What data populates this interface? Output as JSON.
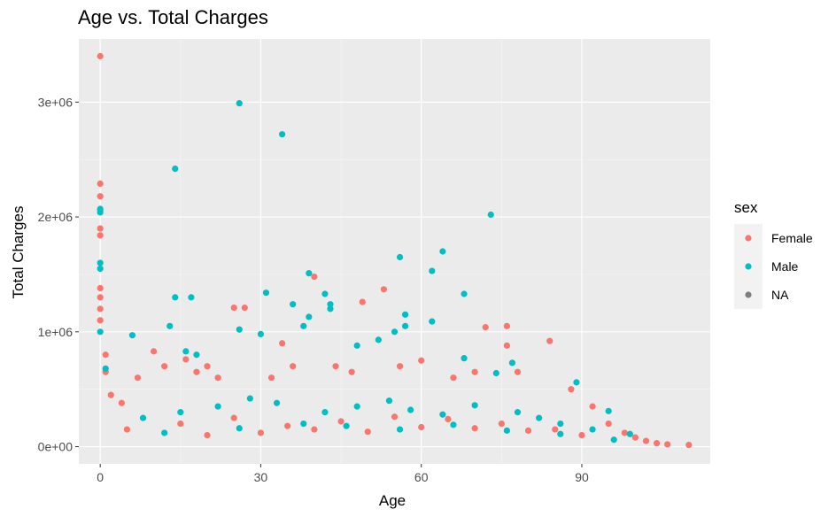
{
  "chart_data": {
    "type": "scatter",
    "title": "Age vs. Total Charges",
    "xlabel": "Age",
    "ylabel": "Total Charges",
    "xlim": [
      -4,
      114
    ],
    "ylim": [
      -150000,
      3550000
    ],
    "x_ticks": [
      0,
      30,
      60,
      90
    ],
    "x_tick_labels": [
      "0",
      "30",
      "60",
      "90"
    ],
    "y_ticks": [
      0,
      1000000,
      2000000,
      3000000
    ],
    "y_tick_labels": [
      "0e+00",
      "1e+06",
      "2e+06",
      "3e+06"
    ],
    "grid": true,
    "legend": {
      "title": "sex",
      "position": "right",
      "entries": [
        {
          "name": "Female",
          "color": "#F8766D"
        },
        {
          "name": "Male",
          "color": "#00BFC4"
        },
        {
          "name": "NA",
          "color": "#7F7F7F"
        }
      ]
    },
    "series": [
      {
        "name": "Female",
        "color": "#F8766D",
        "points": [
          [
            0,
            3400000
          ],
          [
            0,
            2290000
          ],
          [
            0,
            2180000
          ],
          [
            0,
            2060000
          ],
          [
            0,
            1900000
          ],
          [
            0,
            1840000
          ],
          [
            0,
            1380000
          ],
          [
            0,
            1300000
          ],
          [
            0,
            1200000
          ],
          [
            0,
            1100000
          ],
          [
            1,
            800000
          ],
          [
            1,
            650000
          ],
          [
            2,
            450000
          ],
          [
            4,
            380000
          ],
          [
            7,
            600000
          ],
          [
            10,
            830000
          ],
          [
            12,
            700000
          ],
          [
            16,
            760000
          ],
          [
            18,
            650000
          ],
          [
            20,
            700000
          ],
          [
            22,
            600000
          ],
          [
            25,
            1210000
          ],
          [
            27,
            1210000
          ],
          [
            32,
            600000
          ],
          [
            34,
            900000
          ],
          [
            36,
            700000
          ],
          [
            40,
            1480000
          ],
          [
            44,
            700000
          ],
          [
            47,
            650000
          ],
          [
            49,
            1260000
          ],
          [
            53,
            1370000
          ],
          [
            56,
            700000
          ],
          [
            60,
            750000
          ],
          [
            66,
            600000
          ],
          [
            70,
            650000
          ],
          [
            72,
            1040000
          ],
          [
            76,
            1050000
          ],
          [
            76,
            880000
          ],
          [
            78,
            650000
          ],
          [
            84,
            920000
          ],
          [
            88,
            500000
          ],
          [
            92,
            350000
          ],
          [
            95,
            200000
          ],
          [
            98,
            120000
          ],
          [
            100,
            80000
          ],
          [
            102,
            50000
          ],
          [
            104,
            30000
          ],
          [
            106,
            20000
          ],
          [
            110,
            15000
          ],
          [
            5,
            150000
          ],
          [
            15,
            200000
          ],
          [
            25,
            250000
          ],
          [
            35,
            180000
          ],
          [
            45,
            220000
          ],
          [
            55,
            260000
          ],
          [
            65,
            240000
          ],
          [
            75,
            200000
          ],
          [
            85,
            150000
          ],
          [
            20,
            100000
          ],
          [
            30,
            120000
          ],
          [
            40,
            150000
          ],
          [
            50,
            130000
          ],
          [
            60,
            170000
          ],
          [
            70,
            160000
          ],
          [
            80,
            140000
          ],
          [
            90,
            100000
          ]
        ]
      },
      {
        "name": "Male",
        "color": "#00BFC4",
        "points": [
          [
            26,
            2990000
          ],
          [
            34,
            2720000
          ],
          [
            14,
            2420000
          ],
          [
            73,
            2020000
          ],
          [
            0,
            2070000
          ],
          [
            0,
            2040000
          ],
          [
            0,
            1600000
          ],
          [
            0,
            1550000
          ],
          [
            0,
            1000000
          ],
          [
            1,
            680000
          ],
          [
            6,
            970000
          ],
          [
            13,
            1050000
          ],
          [
            14,
            1300000
          ],
          [
            17,
            1300000
          ],
          [
            16,
            830000
          ],
          [
            18,
            800000
          ],
          [
            26,
            1020000
          ],
          [
            30,
            980000
          ],
          [
            31,
            1340000
          ],
          [
            36,
            1240000
          ],
          [
            38,
            1050000
          ],
          [
            39,
            1510000
          ],
          [
            39,
            1130000
          ],
          [
            42,
            1330000
          ],
          [
            43,
            1240000
          ],
          [
            43,
            1200000
          ],
          [
            48,
            880000
          ],
          [
            52,
            930000
          ],
          [
            55,
            1000000
          ],
          [
            56,
            1650000
          ],
          [
            57,
            1150000
          ],
          [
            57,
            1050000
          ],
          [
            62,
            1530000
          ],
          [
            62,
            1090000
          ],
          [
            64,
            1700000
          ],
          [
            68,
            1330000
          ],
          [
            68,
            770000
          ],
          [
            74,
            640000
          ],
          [
            77,
            730000
          ],
          [
            89,
            560000
          ],
          [
            95,
            310000
          ],
          [
            99,
            110000
          ],
          [
            8,
            250000
          ],
          [
            15,
            300000
          ],
          [
            22,
            350000
          ],
          [
            28,
            420000
          ],
          [
            33,
            380000
          ],
          [
            42,
            300000
          ],
          [
            48,
            350000
          ],
          [
            54,
            400000
          ],
          [
            58,
            320000
          ],
          [
            64,
            280000
          ],
          [
            70,
            360000
          ],
          [
            78,
            300000
          ],
          [
            82,
            250000
          ],
          [
            86,
            200000
          ],
          [
            92,
            150000
          ],
          [
            12,
            120000
          ],
          [
            26,
            160000
          ],
          [
            38,
            200000
          ],
          [
            46,
            180000
          ],
          [
            56,
            150000
          ],
          [
            66,
            190000
          ],
          [
            76,
            140000
          ],
          [
            86,
            110000
          ],
          [
            96,
            60000
          ]
        ]
      }
    ]
  }
}
